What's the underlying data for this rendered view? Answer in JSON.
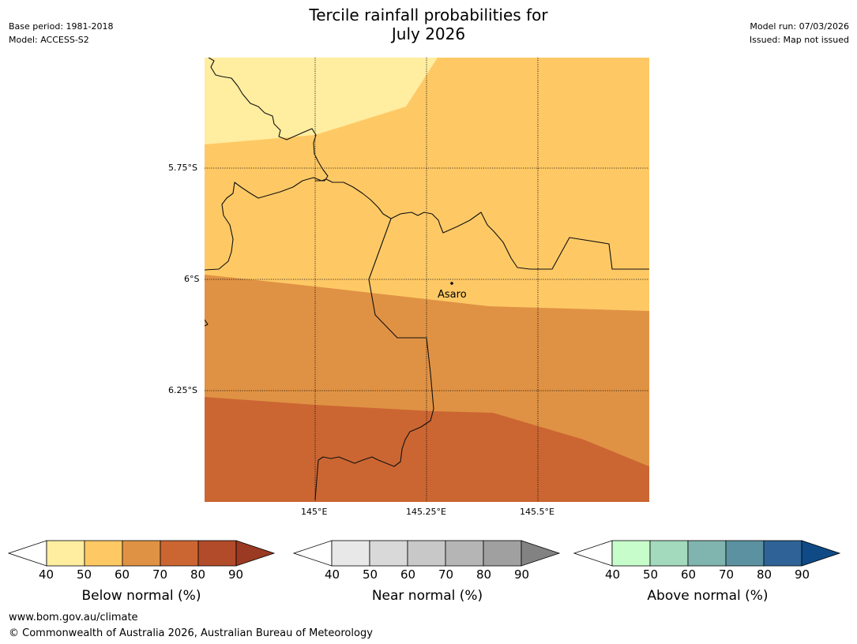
{
  "header": {
    "title_line1": "Tercile rainfall probabilities for",
    "title_line2": "July 2026",
    "base_period": "Base period: 1981-2018",
    "model": "Model: ACCESS-S2",
    "model_run": "Model run: 07/03/2026",
    "issued": "Issued: Map not issued"
  },
  "map": {
    "lat_labels": [
      "5.75°S",
      "6°S",
      "6.25°S"
    ],
    "lon_labels": [
      "145°E",
      "145.25°E",
      "145.5°E"
    ],
    "place": {
      "name": "Asaro"
    },
    "colors": {
      "b40_50": "#ffeda0",
      "b50_60": "#fec965",
      "b60_70": "#e09244",
      "b70_80": "#cb6632"
    }
  },
  "colorbars": [
    {
      "label": "Below normal (%)",
      "ticks": [
        "40",
        "50",
        "60",
        "70",
        "80",
        "90"
      ],
      "colors": [
        "#ffeda0",
        "#fec965",
        "#e09244",
        "#cb6632",
        "#b24b29"
      ],
      "extend_color": "#9a3a22"
    },
    {
      "label": "Near normal (%)",
      "ticks": [
        "40",
        "50",
        "60",
        "70",
        "80",
        "90"
      ],
      "colors": [
        "#e8e8e8",
        "#d9d9d9",
        "#c8c8c8",
        "#b5b5b5",
        "#a0a0a0"
      ],
      "extend_color": "#828282"
    },
    {
      "label": "Above normal (%)",
      "ticks": [
        "40",
        "50",
        "60",
        "70",
        "80",
        "90"
      ],
      "colors": [
        "#c7fdca",
        "#a3d9bc",
        "#80b4ae",
        "#5b91a1",
        "#2f6397"
      ],
      "extend_color": "#0f4a86"
    }
  ],
  "footer": {
    "url": "www.bom.gov.au/climate",
    "copyright": "© Commonwealth of Australia 2026, Australian Bureau of Meteorology"
  }
}
